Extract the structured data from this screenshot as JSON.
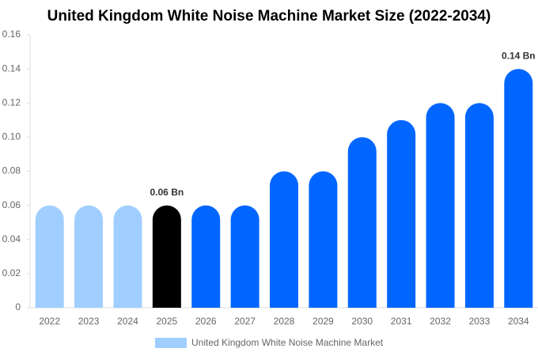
{
  "chart_data": {
    "type": "bar",
    "title": "United Kingdom White Noise Machine Market Size (2022-2034)",
    "categories": [
      "2022",
      "2023",
      "2024",
      "2025",
      "2026",
      "2027",
      "2028",
      "2029",
      "2030",
      "2031",
      "2032",
      "2033",
      "2034"
    ],
    "series": [
      {
        "name": "United Kingdom White Noise Machine Market",
        "color": "#a0cfff",
        "values": [
          0.06,
          0.06,
          0.06,
          0.06,
          0.06,
          0.06,
          0.08,
          0.08,
          0.1,
          0.11,
          0.12,
          0.12,
          0.14
        ],
        "colors": [
          "#a0cfff",
          "#a0cfff",
          "#a0cfff",
          "#000000",
          "#0066ff",
          "#0066ff",
          "#0066ff",
          "#0066ff",
          "#0066ff",
          "#0066ff",
          "#0066ff",
          "#0066ff",
          "#0066ff"
        ],
        "value_labels": [
          null,
          null,
          null,
          "0.06 Bn",
          null,
          null,
          null,
          null,
          null,
          null,
          null,
          null,
          "0.14 Bn"
        ]
      }
    ],
    "ylim": [
      0,
      0.16
    ],
    "yticks": [
      0,
      0.02,
      0.04,
      0.06,
      0.08,
      {
        "value": 0.1,
        "label": "0.10"
      },
      0.12,
      0.14,
      0.16
    ],
    "grid": false
  }
}
